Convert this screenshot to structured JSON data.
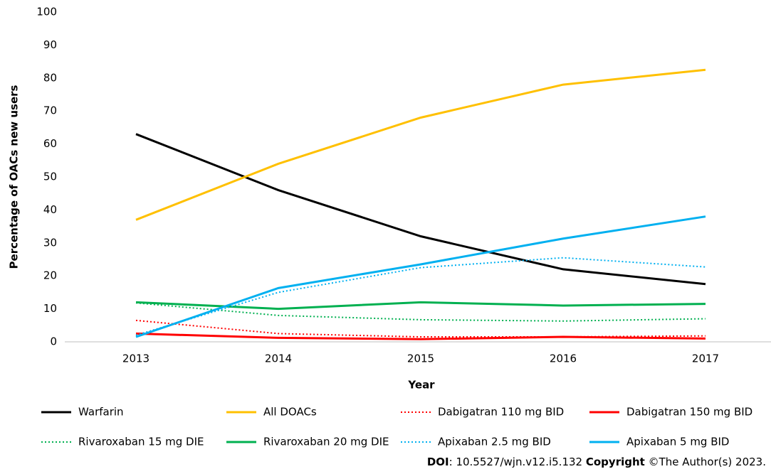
{
  "chart_data": {
    "type": "line",
    "x_label": "Year",
    "y_label": "Percentage of OACs new users",
    "categories": [
      "2013",
      "2014",
      "2015",
      "2016",
      "2017"
    ],
    "ylim": [
      0,
      100
    ],
    "yticks": [
      0,
      10,
      20,
      30,
      40,
      50,
      60,
      70,
      80,
      90,
      100
    ],
    "grid": false,
    "series": [
      {
        "name": "Warfarin",
        "color": "#000000",
        "style": "solid",
        "values": [
          63,
          46,
          32,
          22,
          17.5
        ]
      },
      {
        "name": "All DOACs",
        "color": "#ffc000",
        "style": "solid",
        "values": [
          37,
          54,
          68,
          78,
          82.5
        ]
      },
      {
        "name": "Dabigatran 110 mg BID",
        "color": "#ff0000",
        "style": "dotted",
        "values": [
          6.5,
          2.5,
          1.5,
          1.5,
          1.8
        ]
      },
      {
        "name": "Dabigatran 150 mg BID",
        "color": "#ff0000",
        "style": "solid",
        "values": [
          2.5,
          1.2,
          0.8,
          1.5,
          1.0
        ]
      },
      {
        "name": "Rivaroxaban 15 mg DIE",
        "color": "#00b050",
        "style": "dotted",
        "values": [
          11.8,
          8,
          6.7,
          6.3,
          7
        ]
      },
      {
        "name": "Rivaroxaban 20 mg DIE",
        "color": "#00b050",
        "style": "solid",
        "values": [
          12,
          10,
          12,
          11,
          11.5
        ]
      },
      {
        "name": "Apixaban 2.5 mg BID",
        "color": "#00b0f0",
        "style": "dotted",
        "values": [
          2,
          15,
          22.5,
          25.5,
          22.7
        ]
      },
      {
        "name": "Apixaban 5 mg BID",
        "color": "#00b0f0",
        "style": "solid",
        "values": [
          1.5,
          16.3,
          23.5,
          31.3,
          38
        ]
      }
    ]
  },
  "footer": {
    "doi_label": "DOI",
    "doi": ": 10.5527/wjn.v12.i5.132 ",
    "copyright_label": "Copyright",
    "copyright": " ©The Author(s) 2023."
  }
}
